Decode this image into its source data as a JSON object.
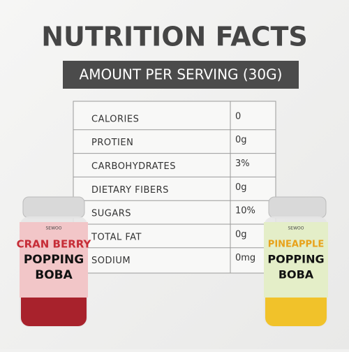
{
  "header": {
    "title": "NUTRITION FACTS",
    "subtitle": "AMOUNT PER SERVING (30G)"
  },
  "table": {
    "rows": [
      [
        "CALORIES",
        "0"
      ],
      [
        "PROTIEN",
        "0g"
      ],
      [
        "CARBOHYDRATES",
        "3%"
      ],
      [
        "DIETARY FIBERS",
        "0g"
      ],
      [
        "SUGARS",
        "10%"
      ],
      [
        "TOTAL FAT",
        "0g"
      ],
      [
        "SODIUM",
        "0mg"
      ]
    ]
  },
  "products": [
    {
      "brand": "SEWOO",
      "flavor": "CRAN BERRY",
      "line1": "POPPING",
      "line2": "BOBA"
    },
    {
      "brand": "SEWOO",
      "flavor": "PINEAPPLE",
      "line1": "POPPING",
      "line2": "BOBA"
    }
  ]
}
